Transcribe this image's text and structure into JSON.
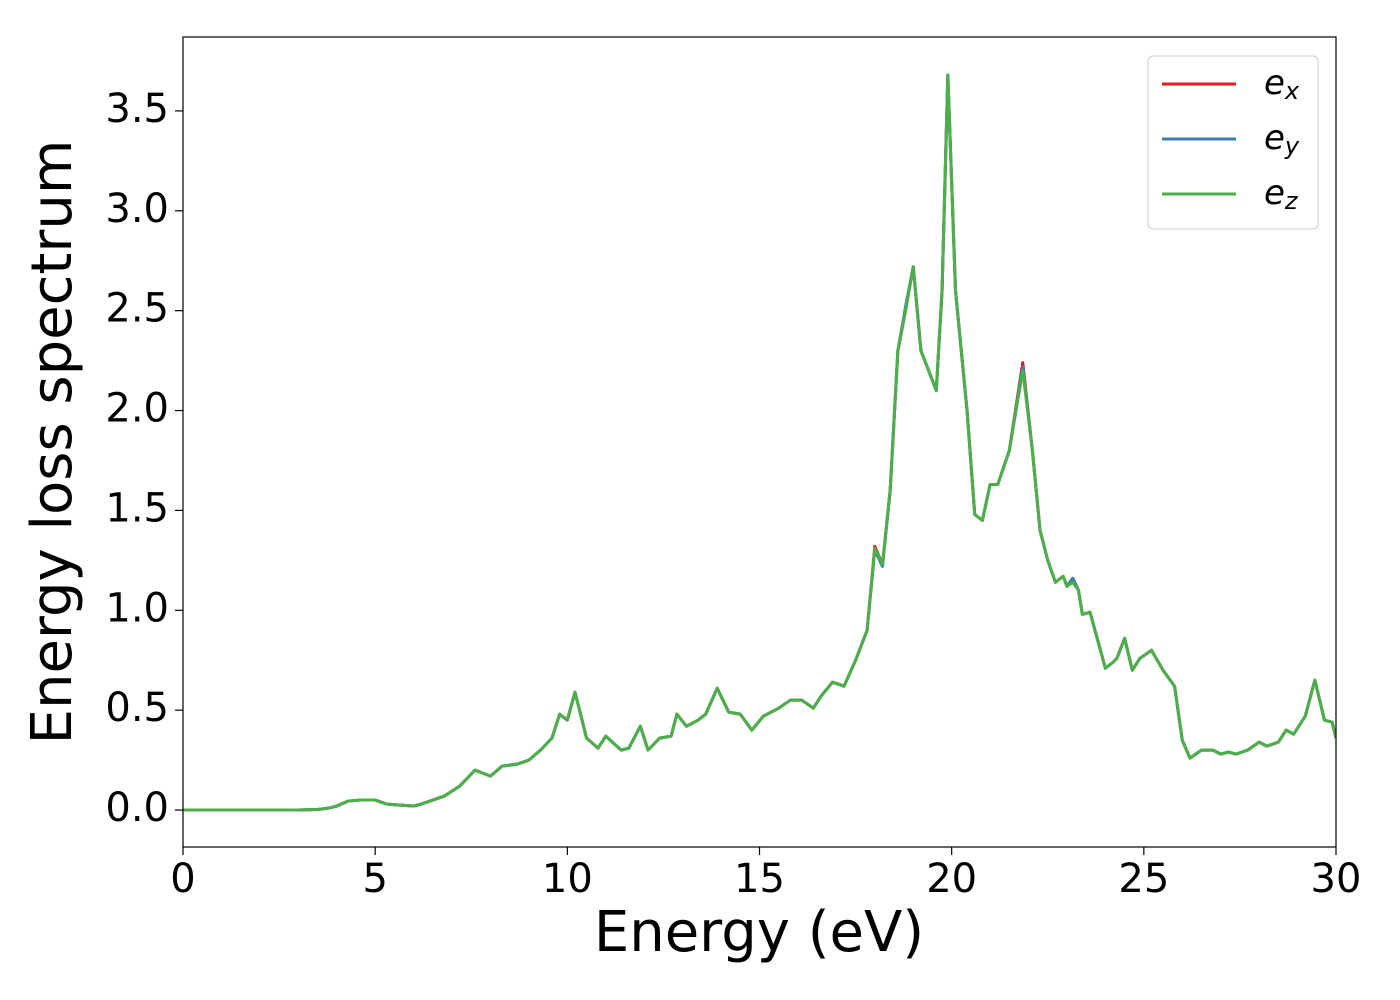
{
  "chart_data": {
    "type": "line",
    "xlabel": "Energy (eV)",
    "ylabel": "Energy loss spectrum",
    "xlim": [
      0,
      30
    ],
    "ylim": [
      -0.185,
      3.87
    ],
    "xticks": [
      0,
      5,
      10,
      15,
      20,
      25,
      30
    ],
    "yticks": [
      {
        "value": 0,
        "label": "0.0"
      },
      0.5,
      {
        "value": 1,
        "label": "1.0"
      },
      1.5,
      {
        "value": 2,
        "label": "2.0"
      },
      2.5,
      {
        "value": 3,
        "label": "3.0"
      },
      3.5
    ],
    "grid": false,
    "legend": "upper right",
    "x": [
      0,
      1,
      2,
      3,
      3.5,
      3.8,
      4,
      4.3,
      4.6,
      5,
      5.3,
      5.6,
      6,
      6.2,
      6.5,
      6.8,
      7.2,
      7.6,
      8,
      8.3,
      8.7,
      9,
      9.3,
      9.6,
      9.8,
      10,
      10.2,
      10.5,
      10.8,
      11,
      11.4,
      11.6,
      11.9,
      12.1,
      12.4,
      12.7,
      12.85,
      13.1,
      13.4,
      13.6,
      13.9,
      14.2,
      14.5,
      14.8,
      15.1,
      15.5,
      15.8,
      16.1,
      16.4,
      16.6,
      16.9,
      17.2,
      17.5,
      17.8,
      18,
      18.2,
      18.4,
      18.6,
      18.8,
      19,
      19.2,
      19.4,
      19.6,
      19.75,
      19.9,
      20.1,
      20.4,
      20.6,
      20.8,
      21,
      21.2,
      21.5,
      21.85,
      22.1,
      22.3,
      22.5,
      22.7,
      22.9,
      23,
      23.15,
      23.3,
      23.4,
      23.6,
      23.8,
      24,
      24.2,
      24.3,
      24.5,
      24.7,
      24.9,
      25.2,
      25.5,
      25.8,
      26,
      26.2,
      26.5,
      26.8,
      27,
      27.2,
      27.4,
      27.7,
      28,
      28.2,
      28.5,
      28.7,
      28.9,
      29.2,
      29.45,
      29.7,
      29.9,
      30
    ],
    "series": [
      {
        "name": "ex",
        "color": "#e41a1c",
        "values": [
          0,
          0,
          0,
          0,
          0.003,
          0.01,
          0.02,
          0.045,
          0.05,
          0.05,
          0.03,
          0.025,
          0.02,
          0.03,
          0.05,
          0.07,
          0.12,
          0.2,
          0.17,
          0.22,
          0.23,
          0.25,
          0.3,
          0.36,
          0.48,
          0.45,
          0.59,
          0.36,
          0.31,
          0.37,
          0.3,
          0.31,
          0.42,
          0.3,
          0.36,
          0.37,
          0.48,
          0.42,
          0.45,
          0.48,
          0.61,
          0.49,
          0.48,
          0.4,
          0.47,
          0.51,
          0.55,
          0.55,
          0.51,
          0.57,
          0.64,
          0.62,
          0.75,
          0.9,
          1.32,
          1.23,
          1.6,
          2.3,
          2.5,
          2.72,
          2.3,
          2.2,
          2.1,
          2.6,
          3.68,
          2.6,
          2.0,
          1.48,
          1.45,
          1.63,
          1.63,
          1.8,
          2.24,
          1.8,
          1.4,
          1.25,
          1.14,
          1.17,
          1.12,
          1.16,
          1.1,
          0.98,
          0.99,
          0.85,
          0.71,
          0.74,
          0.76,
          0.86,
          0.7,
          0.76,
          0.8,
          0.7,
          0.62,
          0.35,
          0.26,
          0.3,
          0.3,
          0.28,
          0.29,
          0.28,
          0.3,
          0.34,
          0.32,
          0.34,
          0.4,
          0.38,
          0.47,
          0.65,
          0.45,
          0.44,
          0.36
        ]
      },
      {
        "name": "ey",
        "color": "#377eb8",
        "values": [
          0,
          0,
          0,
          0,
          0.003,
          0.01,
          0.02,
          0.045,
          0.05,
          0.05,
          0.03,
          0.025,
          0.02,
          0.03,
          0.05,
          0.07,
          0.12,
          0.2,
          0.17,
          0.22,
          0.23,
          0.25,
          0.3,
          0.36,
          0.48,
          0.45,
          0.59,
          0.36,
          0.31,
          0.37,
          0.3,
          0.31,
          0.42,
          0.3,
          0.36,
          0.37,
          0.48,
          0.42,
          0.45,
          0.48,
          0.61,
          0.49,
          0.48,
          0.4,
          0.47,
          0.51,
          0.55,
          0.55,
          0.51,
          0.57,
          0.64,
          0.62,
          0.75,
          0.9,
          1.3,
          1.22,
          1.6,
          2.3,
          2.52,
          2.72,
          2.3,
          2.2,
          2.1,
          2.6,
          3.68,
          2.6,
          2.0,
          1.48,
          1.45,
          1.63,
          1.63,
          1.8,
          2.22,
          1.8,
          1.4,
          1.25,
          1.14,
          1.17,
          1.12,
          1.16,
          1.1,
          0.98,
          0.99,
          0.85,
          0.71,
          0.74,
          0.76,
          0.86,
          0.7,
          0.76,
          0.8,
          0.7,
          0.62,
          0.35,
          0.26,
          0.3,
          0.3,
          0.28,
          0.29,
          0.28,
          0.3,
          0.34,
          0.32,
          0.34,
          0.4,
          0.38,
          0.47,
          0.65,
          0.45,
          0.44,
          0.36
        ]
      },
      {
        "name": "ez",
        "color": "#4daf4a",
        "values": [
          0,
          0,
          0,
          0,
          0.003,
          0.01,
          0.02,
          0.045,
          0.05,
          0.05,
          0.03,
          0.025,
          0.02,
          0.03,
          0.05,
          0.07,
          0.12,
          0.2,
          0.17,
          0.22,
          0.23,
          0.25,
          0.3,
          0.36,
          0.48,
          0.45,
          0.59,
          0.36,
          0.31,
          0.37,
          0.3,
          0.31,
          0.42,
          0.3,
          0.36,
          0.37,
          0.48,
          0.42,
          0.45,
          0.48,
          0.61,
          0.49,
          0.48,
          0.4,
          0.47,
          0.51,
          0.55,
          0.55,
          0.51,
          0.57,
          0.64,
          0.62,
          0.75,
          0.9,
          1.31,
          1.23,
          1.6,
          2.3,
          2.5,
          2.72,
          2.3,
          2.2,
          2.1,
          2.6,
          3.68,
          2.6,
          2.0,
          1.48,
          1.45,
          1.63,
          1.63,
          1.8,
          2.2,
          1.8,
          1.4,
          1.25,
          1.14,
          1.17,
          1.12,
          1.14,
          1.1,
          0.98,
          0.99,
          0.85,
          0.71,
          0.74,
          0.76,
          0.86,
          0.7,
          0.76,
          0.8,
          0.7,
          0.62,
          0.35,
          0.26,
          0.3,
          0.3,
          0.28,
          0.29,
          0.28,
          0.3,
          0.34,
          0.32,
          0.34,
          0.4,
          0.38,
          0.47,
          0.65,
          0.45,
          0.44,
          0.36
        ]
      }
    ]
  }
}
